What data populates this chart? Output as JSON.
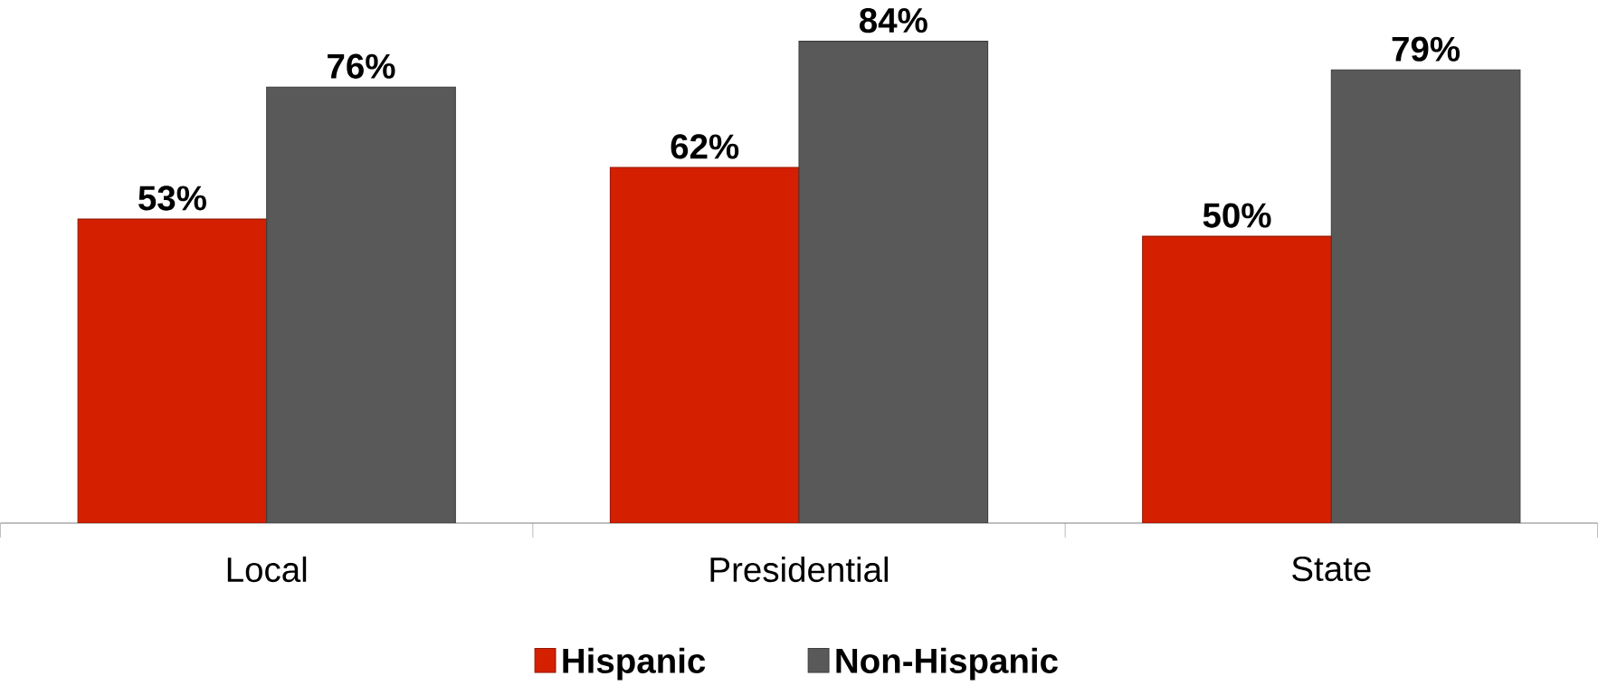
{
  "chart_data": {
    "type": "bar",
    "categories": [
      "Local",
      "Presidential",
      "State"
    ],
    "series": [
      {
        "name": "Hispanic",
        "color": "#d42000",
        "values": [
          53,
          62,
          50
        ],
        "value_labels": [
          "53%",
          "62%",
          "50%"
        ]
      },
      {
        "name": "Non-Hispanic",
        "color": "#595959",
        "values": [
          76,
          84,
          79
        ],
        "value_labels": [
          "76%",
          "84%",
          "79%"
        ]
      }
    ],
    "legend": "bottom"
  }
}
